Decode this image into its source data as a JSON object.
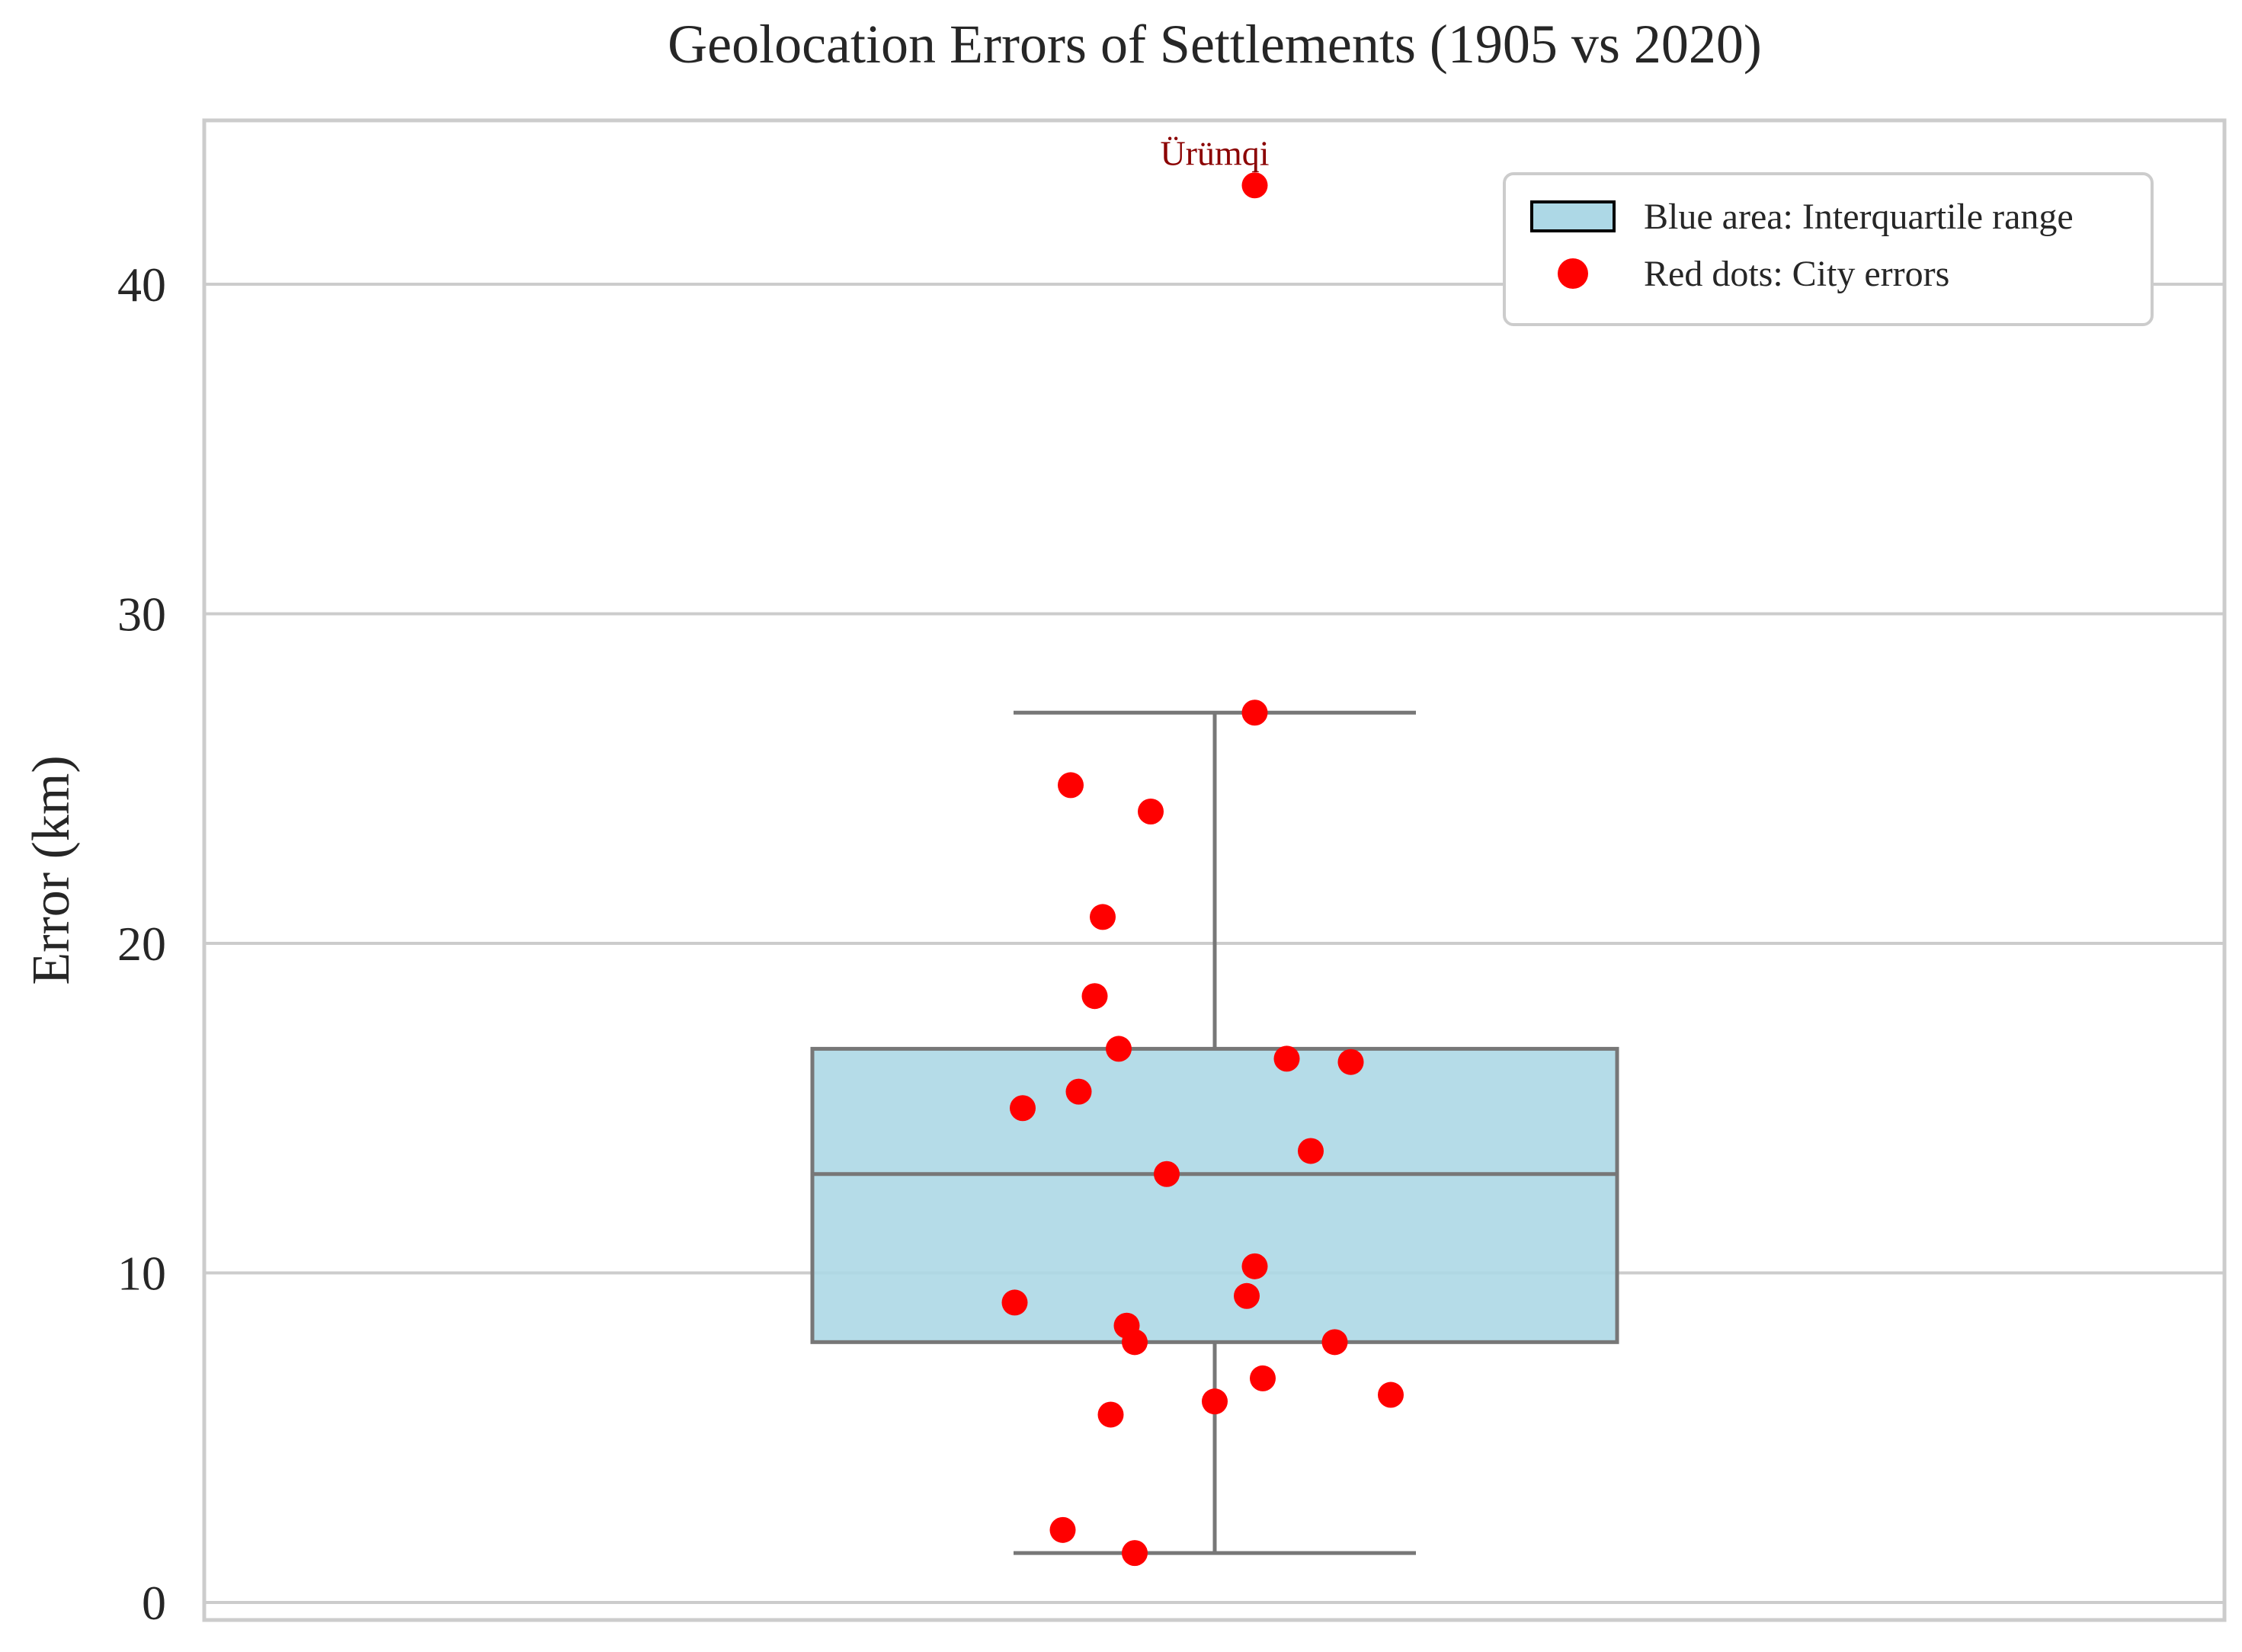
{
  "chart_data": {
    "type": "box",
    "title": "Geolocation Errors of Settlements (1905 vs 2020)",
    "xlabel": "",
    "ylabel": "Error (km)",
    "ylim": [
      -0.5,
      45.6
    ],
    "yticks": [
      0,
      10,
      20,
      30,
      40
    ],
    "grid": true,
    "legend_position": "top-right",
    "legend": [
      {
        "label": "Blue area: Interquartile range",
        "marker": "box",
        "color": "#add8e6"
      },
      {
        "label": "Red dots: City errors",
        "marker": "dot",
        "color": "#ff0000"
      }
    ],
    "box": {
      "whisker_low": 1.5,
      "q1": 7.9,
      "median": 13.0,
      "q3": 16.8,
      "whisker_high": 27.0,
      "fill": "#add8e6",
      "edge": "#777777"
    },
    "points": [
      {
        "jitter": 0.05,
        "value": 43.0
      },
      {
        "jitter": 0.05,
        "value": 27.0
      },
      {
        "jitter": -0.18,
        "value": 24.8
      },
      {
        "jitter": -0.08,
        "value": 24.0
      },
      {
        "jitter": -0.14,
        "value": 20.8
      },
      {
        "jitter": -0.15,
        "value": 18.4
      },
      {
        "jitter": -0.12,
        "value": 16.8
      },
      {
        "jitter": 0.09,
        "value": 16.5
      },
      {
        "jitter": 0.17,
        "value": 16.4
      },
      {
        "jitter": -0.17,
        "value": 15.5
      },
      {
        "jitter": -0.24,
        "value": 15.0
      },
      {
        "jitter": 0.12,
        "value": 13.7
      },
      {
        "jitter": -0.06,
        "value": 13.0
      },
      {
        "jitter": 0.05,
        "value": 10.2
      },
      {
        "jitter": -0.25,
        "value": 9.1
      },
      {
        "jitter": 0.04,
        "value": 9.3
      },
      {
        "jitter": -0.11,
        "value": 8.4
      },
      {
        "jitter": -0.1,
        "value": 7.9
      },
      {
        "jitter": 0.15,
        "value": 7.9
      },
      {
        "jitter": 0.06,
        "value": 6.8
      },
      {
        "jitter": 0.22,
        "value": 6.3
      },
      {
        "jitter": 0.0,
        "value": 6.1
      },
      {
        "jitter": -0.13,
        "value": 5.7
      },
      {
        "jitter": -0.19,
        "value": 2.2
      },
      {
        "jitter": -0.1,
        "value": 1.5
      }
    ],
    "point_color": "#ff0000",
    "annotations": [
      {
        "text": "Ürümqi",
        "value": 43.0,
        "jitter": 0.0
      }
    ]
  }
}
